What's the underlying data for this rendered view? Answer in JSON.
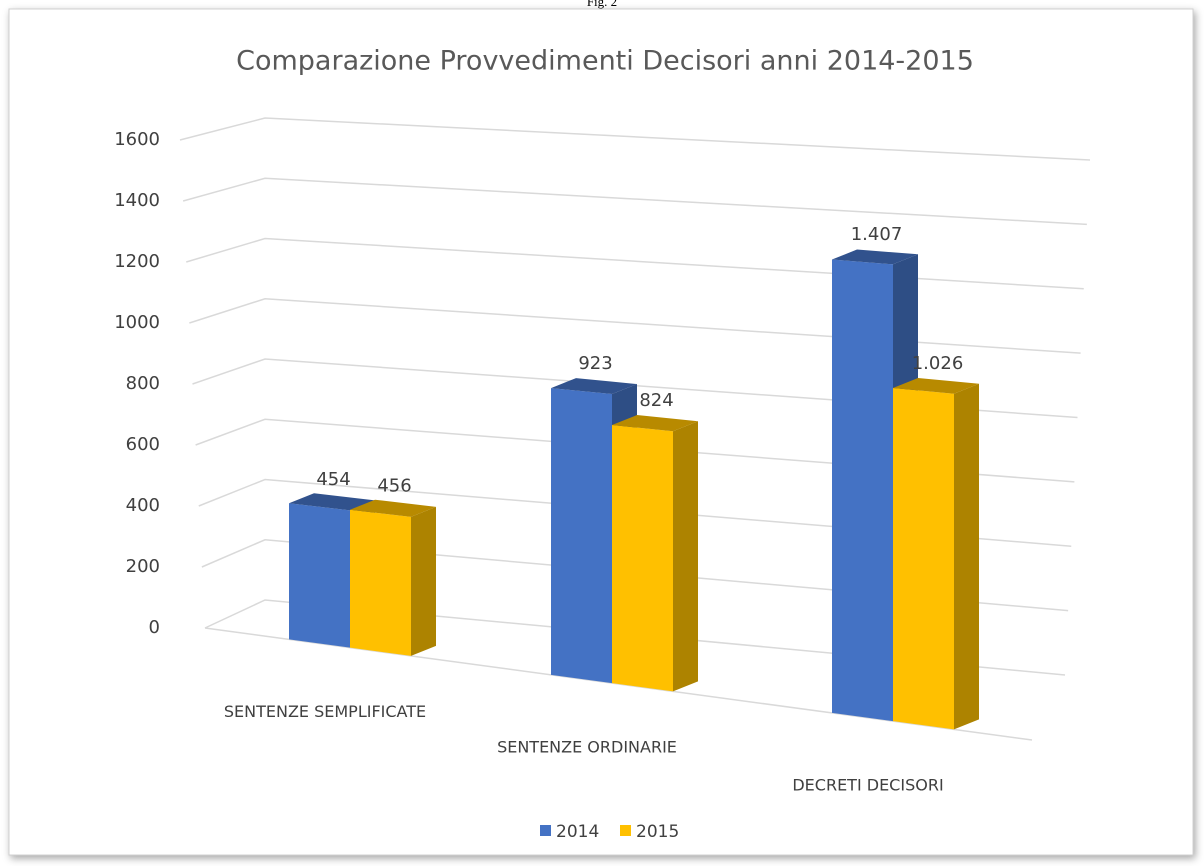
{
  "chart_data": {
    "type": "bar3d",
    "caption": "Fig. 2",
    "title": "Comparazione Provvedimenti Decisori anni 2014-2015",
    "categories": [
      "SENTENZE SEMPLIFICATE",
      "SENTENZE ORDINARIE",
      "DECRETI DECISORI"
    ],
    "series": [
      {
        "name": "2014",
        "color": "#4472c4",
        "values": [
          454,
          923,
          1407
        ],
        "value_labels": [
          "454",
          "923",
          "1.407"
        ]
      },
      {
        "name": "2015",
        "color": "#ffc000",
        "values": [
          456,
          824,
          1026
        ],
        "value_labels": [
          "456",
          "824",
          "1.026"
        ]
      }
    ],
    "ylim": [
      0,
      1600
    ],
    "yticks": [
      0,
      200,
      400,
      600,
      800,
      1000,
      1200,
      1400,
      1600
    ],
    "grid": true,
    "legend": "bottom"
  }
}
